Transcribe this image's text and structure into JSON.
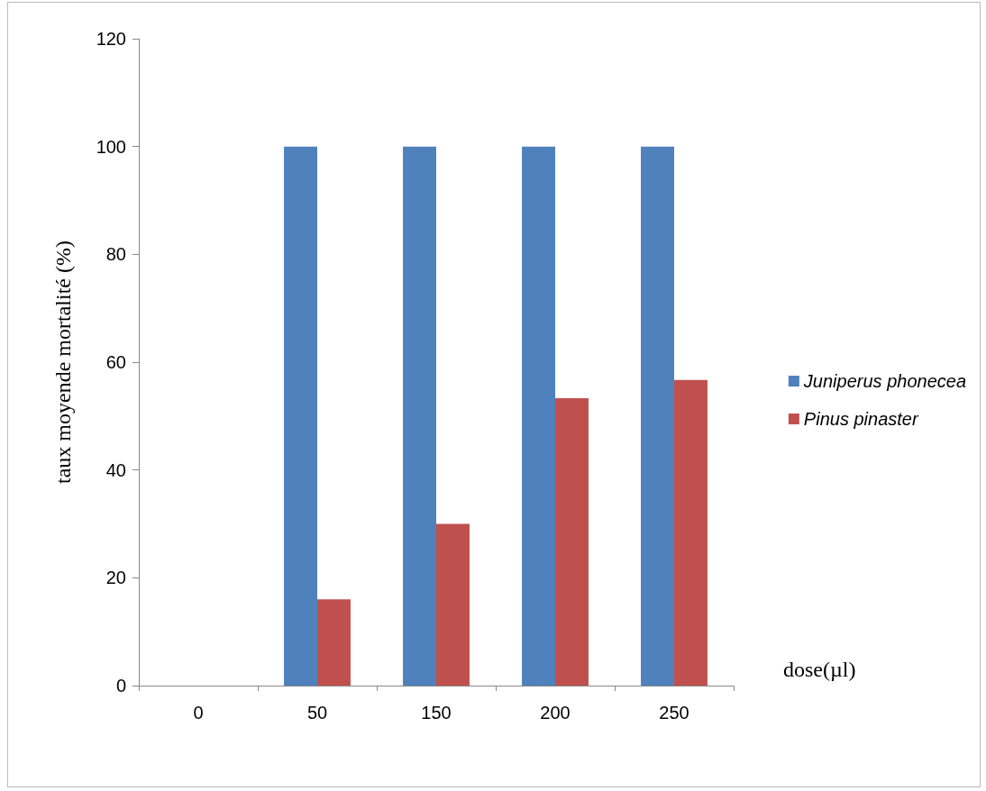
{
  "chart_data": {
    "type": "bar",
    "xlabel": "dose(µl)",
    "ylabel": "taux moyende mortalité (%)",
    "categories": [
      "0",
      "50",
      "150",
      "200",
      "250"
    ],
    "series": [
      {
        "name": "Juniperus phonecea",
        "color": "#4f81bd",
        "values": [
          0,
          100,
          100,
          100,
          100
        ]
      },
      {
        "name": "Pinus pinaster",
        "color": "#c0504d",
        "values": [
          0,
          16,
          30,
          53.3,
          56.7
        ]
      }
    ],
    "ylim": [
      0,
      120
    ],
    "yticks": [
      0,
      20,
      40,
      60,
      80,
      100,
      120
    ],
    "grid": false,
    "legend": "right"
  }
}
